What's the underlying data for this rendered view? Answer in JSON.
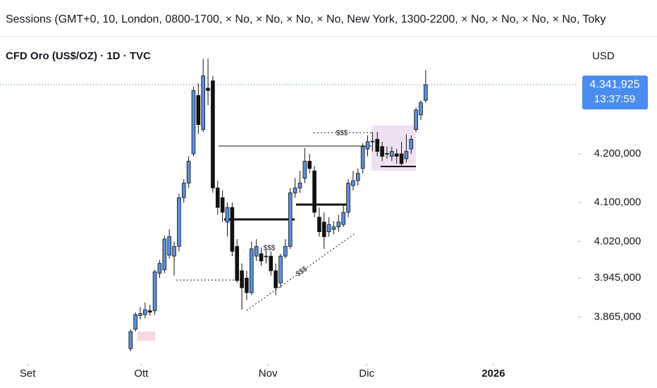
{
  "header": {
    "indicator": "Sessions (GMT+0, 10, London, 0800-1700, × No, × No, × No, × No, New York, 1300-2200, × No, × No, × No, × No, Toky"
  },
  "chart_data": {
    "type": "candlestick",
    "title": "CFD Oro (US$/OZ) · 1D · TVC",
    "currency": "USD",
    "up_color": "#5b8fd9",
    "down_color": "#111111",
    "x": [
      0,
      1,
      2,
      3,
      4,
      5,
      6,
      7,
      8,
      9,
      10,
      11,
      12,
      13,
      14,
      15,
      16,
      17,
      18,
      19,
      20,
      21,
      22,
      23,
      24,
      25,
      26,
      27,
      28,
      29,
      30,
      31,
      32,
      33,
      34,
      35,
      36,
      37,
      38,
      39,
      40,
      41,
      42,
      43,
      44,
      45,
      46,
      47,
      48,
      49,
      50,
      51,
      52,
      53,
      54,
      55,
      56,
      57,
      58,
      59,
      60,
      61
    ],
    "open": [
      3800,
      3840,
      3868,
      3870,
      3878,
      3878,
      3955,
      3962,
      3992,
      3990,
      4010,
      4110,
      4140,
      4200,
      4320,
      4250,
      4335,
      4350,
      4130,
      4110,
      4060,
      4090,
      4010,
      3960,
      3945,
      3915,
      3990,
      3995,
      3990,
      3990,
      3960,
      3935,
      3990,
      4010,
      4120,
      4130,
      4150,
      4185,
      4165,
      4070,
      4060,
      4040,
      4045,
      4050,
      4055,
      4080,
      4135,
      4145,
      4170,
      4210,
      4225,
      4230,
      4215,
      4200,
      4195,
      4200,
      4200,
      4190,
      4210,
      4250,
      4280,
      4310
    ],
    "high": [
      3840,
      3875,
      3885,
      3895,
      3890,
      3962,
      3982,
      4032,
      4045,
      4020,
      4118,
      4148,
      4195,
      4338,
      4345,
      4395,
      4395,
      4360,
      4145,
      4125,
      4100,
      4100,
      4025,
      3975,
      3960,
      4020,
      4025,
      4008,
      4002,
      4000,
      3975,
      3995,
      4025,
      4130,
      4150,
      4165,
      4212,
      4200,
      4175,
      4090,
      4080,
      4070,
      4062,
      4075,
      4095,
      4148,
      4165,
      4170,
      4222,
      4238,
      4245,
      4245,
      4225,
      4215,
      4215,
      4210,
      4225,
      4240,
      4238,
      4295,
      4310,
      4372
    ],
    "low": [
      3795,
      3835,
      3860,
      3862,
      3868,
      3870,
      3945,
      3955,
      3985,
      3950,
      4000,
      4100,
      4130,
      4195,
      4240,
      4245,
      4300,
      4120,
      4075,
      4060,
      4030,
      3990,
      3935,
      3880,
      3900,
      3910,
      3980,
      3970,
      3975,
      3950,
      3910,
      3925,
      3985,
      4005,
      4110,
      4120,
      4140,
      4160,
      4070,
      4030,
      4005,
      4030,
      4035,
      4040,
      4050,
      4070,
      4125,
      4135,
      4160,
      4195,
      4205,
      4195,
      4185,
      4190,
      4185,
      4180,
      4175,
      4182,
      4200,
      4245,
      4270,
      4305
    ],
    "close": [
      3835,
      3870,
      3872,
      3880,
      3875,
      3958,
      3975,
      4025,
      4030,
      4010,
      4110,
      4140,
      4185,
      4330,
      4260,
      4360,
      4330,
      4130,
      4090,
      4080,
      4090,
      4000,
      3940,
      3925,
      3915,
      4005,
      4010,
      3980,
      3990,
      3960,
      3925,
      3990,
      4010,
      4120,
      4130,
      4140,
      4185,
      4170,
      4080,
      4040,
      4030,
      4055,
      4050,
      4060,
      4080,
      4140,
      4145,
      4160,
      4215,
      4225,
      4226,
      4205,
      4195,
      4201,
      4205,
      4195,
      4180,
      4205,
      4230,
      4290,
      4305,
      4342
    ],
    "xlim": [
      -27,
      92.5
    ],
    "xticks": [
      {
        "value": -21.3,
        "label": "Set"
      },
      {
        "value": 2.2,
        "label": "Ott"
      },
      {
        "value": 28.4,
        "label": "Nov"
      },
      {
        "value": 48.8,
        "label": "Dic"
      },
      {
        "value": 75,
        "label": "2026"
      }
    ],
    "ylim": [
      3770,
      4429
    ],
    "yticks": [
      {
        "value": 3865,
        "label": "3.865,000"
      },
      {
        "value": 3945,
        "label": "3.945,000"
      },
      {
        "value": 4020,
        "label": "4.020,000"
      },
      {
        "value": 4100,
        "label": "4.100,000"
      },
      {
        "value": 4200,
        "label": "4.200,000"
      }
    ],
    "last_price": {
      "value": 4341.925,
      "label": "4.341,925",
      "countdown": "13:37:59"
    },
    "annotations": [
      "$$$",
      "$$$",
      "$$$"
    ]
  }
}
